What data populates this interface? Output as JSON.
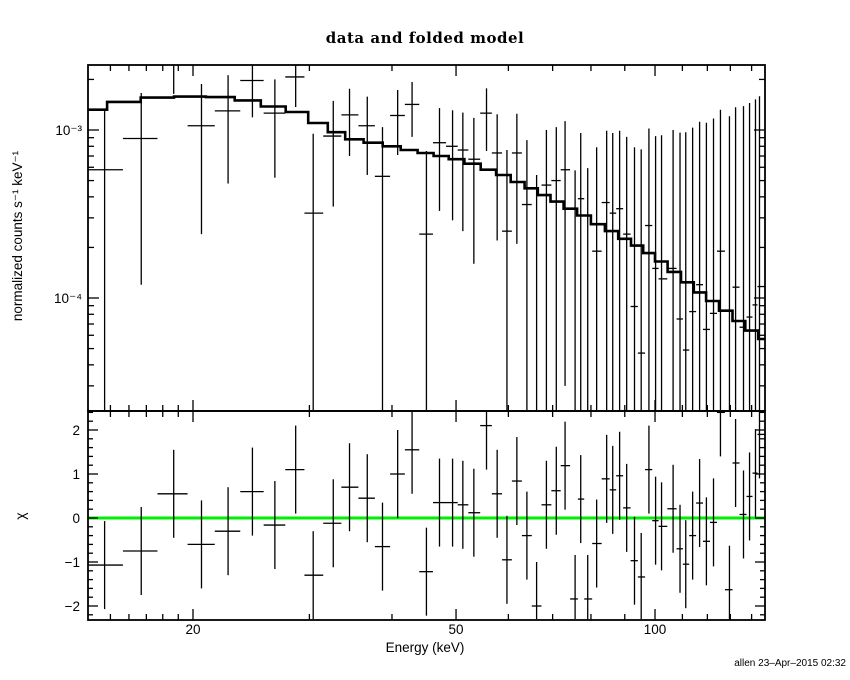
{
  "title": "data and folded model",
  "footer": {
    "credit": "allen 23–Apr–2015 02:32"
  },
  "colors": {
    "foreground": "#000000",
    "background": "#ffffff",
    "model_line": "#000000",
    "zero_line_green": "#00ee00"
  },
  "chart_data": {
    "type": "scatter",
    "title": "data and folded model",
    "xlabel": "Energy (keV)",
    "x_scale": "log",
    "x_range_kev": [
      13.9,
      146.6
    ],
    "x_major_ticks": [
      20,
      50,
      100
    ],
    "x_minor_ticks": [
      15,
      16,
      17,
      18,
      19,
      30,
      40,
      60,
      70,
      80,
      90,
      110,
      120,
      130,
      140
    ],
    "panels": [
      {
        "name": "spectrum",
        "ylabel": "normalized counts s⁻¹ keV⁻¹",
        "y_scale": "log",
        "y_range": [
          2.16e-05,
          0.00244
        ],
        "y_major_ticks": [
          {
            "label": "10⁻³",
            "value": 0.001
          },
          {
            "label": "10⁻⁴",
            "value": 0.0001
          }
        ],
        "model_steps": [
          [
            14.0,
            0.00132
          ],
          [
            15.7,
            0.00147
          ],
          [
            17.7,
            0.00156
          ],
          [
            19.8,
            0.00158
          ],
          [
            22.1,
            0.00157
          ],
          [
            24.2,
            0.0015
          ],
          [
            26.5,
            0.00138
          ],
          [
            28.8,
            0.00128
          ],
          [
            31.0,
            0.0011
          ],
          [
            33.0,
            0.00097
          ],
          [
            35.0,
            0.00088
          ],
          [
            37.5,
            0.00084
          ],
          [
            40.0,
            0.0008
          ],
          [
            42.5,
            0.00076
          ],
          [
            45.0,
            0.00073
          ],
          [
            47.5,
            0.0007
          ],
          [
            50.0,
            0.00067
          ],
          [
            53.0,
            0.00063
          ],
          [
            56.0,
            0.00058
          ],
          [
            59.0,
            0.00054
          ],
          [
            62.0,
            0.00049
          ],
          [
            65.0,
            0.00045
          ],
          [
            68.0,
            0.00041
          ],
          [
            71.0,
            0.000375
          ],
          [
            74.5,
            0.00034
          ],
          [
            78.0,
            0.00031
          ],
          [
            82.0,
            0.000275
          ],
          [
            86.0,
            0.00025
          ],
          [
            90.0,
            0.000225
          ],
          [
            94.0,
            0.000205
          ],
          [
            98.0,
            0.000185
          ],
          [
            102.0,
            0.000165
          ],
          [
            107.0,
            0.000143
          ],
          [
            112.0,
            0.000124
          ],
          [
            117.0,
            0.000108
          ],
          [
            122.0,
            9.6e-05
          ],
          [
            128.0,
            8.4e-05
          ],
          [
            134.0,
            7.3e-05
          ],
          [
            140.0,
            6.4e-05
          ],
          [
            146.6,
            5.7e-05
          ]
        ],
        "points": [
          [
            14.7,
            0.00058,
            0.00072
          ],
          [
            16.7,
            0.00089,
            0.00077
          ],
          [
            18.7,
            0.00245,
            0.00081
          ],
          [
            20.6,
            0.00106,
            0.00082
          ],
          [
            22.6,
            0.0013,
            0.00082
          ],
          [
            24.6,
            0.00197,
            0.00078
          ],
          [
            26.6,
            0.00126,
            0.00074
          ],
          [
            28.6,
            0.00207,
            0.0007
          ],
          [
            30.4,
            0.00032,
            0.00063
          ],
          [
            32.6,
            0.00092,
            0.00057
          ],
          [
            34.5,
            0.00123,
            0.00053
          ],
          [
            36.7,
            0.00106,
            0.00052
          ],
          [
            38.7,
            0.00053,
            0.00051
          ],
          [
            40.8,
            0.00122,
            0.00051
          ],
          [
            42.9,
            0.00142,
            0.00051
          ],
          [
            45.1,
            0.00024,
            0.00051
          ],
          [
            47.2,
            0.00084,
            0.00051
          ],
          [
            49.4,
            0.0008,
            0.00051
          ],
          [
            51.2,
            0.00076,
            0.00051
          ],
          [
            53.2,
            0.00067,
            0.00051
          ],
          [
            55.6,
            0.00126,
            0.00051
          ],
          [
            57.7,
            0.00073,
            0.00051
          ],
          [
            59.7,
            0.00025,
            0.00051
          ],
          [
            61.8,
            0.00073,
            0.00052
          ],
          [
            64.0,
            0.00036,
            0.00051
          ],
          [
            66.2,
            2e-05,
            0.00052
          ],
          [
            68.5,
            0.00047,
            0.00053
          ],
          [
            70.9,
            0.0005,
            0.00054
          ],
          [
            73.1,
            0.00058,
            0.00055
          ],
          [
            75.7,
            1.5e-05,
            0.00056
          ],
          [
            77.2,
            0.00039,
            0.00057
          ],
          [
            79.1,
            1.3e-05,
            0.00058
          ],
          [
            81.6,
            0.00019,
            0.0006
          ],
          [
            84.5,
            0.00037,
            0.00062
          ],
          [
            86.3,
            0.00032,
            0.00064
          ],
          [
            88.4,
            0.00034,
            0.00065
          ],
          [
            90.6,
            0.00024,
            0.00067
          ],
          [
            93.1,
            8.9e-05,
            0.0007
          ],
          [
            95.3,
            4.7e-05,
            0.00072
          ],
          [
            97.9,
            0.00027,
            0.00075
          ],
          [
            100.2,
            0.00015,
            0.00077
          ],
          [
            102.3,
            0.00013,
            0.0008
          ],
          [
            106.5,
            0.00015,
            0.00085
          ],
          [
            109.1,
            7.5e-05,
            0.00089
          ],
          [
            111.3,
            4.9e-05,
            0.00092
          ],
          [
            114.0,
            8.3e-05,
            0.00095
          ],
          [
            116.8,
            0.00012,
            0.001
          ],
          [
            119.6,
            6.5e-05,
            0.00104
          ],
          [
            122.6,
            8.1e-05,
            0.00109
          ],
          [
            125.6,
            0.00019,
            0.00113
          ],
          [
            129.6,
            8e-06,
            0.0012
          ],
          [
            132.4,
            0.000116,
            0.00125
          ],
          [
            136.1,
            6.7e-05,
            0.00132
          ],
          [
            139.0,
            7.7e-05,
            0.00137
          ],
          [
            141.9,
            9.1e-05,
            0.00143
          ],
          [
            143.9,
            0.000117,
            0.00147
          ]
        ]
      },
      {
        "name": "residuals",
        "ylabel": "χ",
        "y_scale": "linear",
        "y_range": [
          -2.32,
          2.43
        ],
        "y_major_ticks": [
          {
            "label": "2",
            "value": 2
          },
          {
            "label": "1",
            "value": 1
          },
          {
            "label": "0",
            "value": 0
          },
          {
            "label": "−1",
            "value": -1
          },
          {
            "label": "−2",
            "value": -2
          }
        ],
        "zero_line": 0,
        "points": [
          [
            14.7,
            -1.07,
            1.0
          ],
          [
            16.7,
            -0.75,
            1.0
          ],
          [
            18.7,
            0.55,
            1.0
          ],
          [
            20.6,
            -0.6,
            1.0
          ],
          [
            22.6,
            -0.3,
            1.0
          ],
          [
            24.6,
            0.6,
            1.0
          ],
          [
            26.6,
            -0.16,
            1.0
          ],
          [
            28.6,
            1.1,
            1.0
          ],
          [
            30.4,
            -1.3,
            1.0
          ],
          [
            32.6,
            -0.12,
            1.0
          ],
          [
            34.5,
            0.7,
            1.0
          ],
          [
            36.7,
            0.45,
            1.0
          ],
          [
            38.7,
            -0.65,
            1.0
          ],
          [
            40.8,
            1.0,
            1.0
          ],
          [
            42.9,
            1.55,
            1.0
          ],
          [
            45.1,
            -1.22,
            1.0
          ],
          [
            47.2,
            0.35,
            1.0
          ],
          [
            49.4,
            0.35,
            1.0
          ],
          [
            51.2,
            0.3,
            1.0
          ],
          [
            53.2,
            0.12,
            1.0
          ],
          [
            55.6,
            2.1,
            1.0
          ],
          [
            57.7,
            0.55,
            1.0
          ],
          [
            59.7,
            -0.95,
            1.0
          ],
          [
            61.8,
            0.84,
            1.0
          ],
          [
            64.0,
            -0.4,
            1.0
          ],
          [
            66.2,
            -2.0,
            1.0
          ],
          [
            68.5,
            0.3,
            1.0
          ],
          [
            70.9,
            0.62,
            1.0
          ],
          [
            73.1,
            1.19,
            1.0
          ],
          [
            75.7,
            -1.84,
            1.0
          ],
          [
            77.2,
            0.43,
            1.0
          ],
          [
            79.1,
            -1.84,
            1.0
          ],
          [
            81.6,
            -0.58,
            1.0
          ],
          [
            84.5,
            0.89,
            1.0
          ],
          [
            86.3,
            0.64,
            1.0
          ],
          [
            88.4,
            0.96,
            1.0
          ],
          [
            90.6,
            0.23,
            1.0
          ],
          [
            93.1,
            -0.97,
            1.0
          ],
          [
            95.3,
            -1.34,
            1.0
          ],
          [
            97.9,
            1.1,
            1.0
          ],
          [
            100.2,
            -0.06,
            1.0
          ],
          [
            102.3,
            -0.19,
            1.0
          ],
          [
            106.5,
            0.21,
            1.0
          ],
          [
            109.1,
            -0.7,
            1.0
          ],
          [
            111.3,
            -1.05,
            1.0
          ],
          [
            114.0,
            -0.4,
            1.0
          ],
          [
            116.8,
            0.34,
            1.0
          ],
          [
            119.6,
            -0.53,
            1.0
          ],
          [
            122.6,
            -0.1,
            1.0
          ],
          [
            125.6,
            2.4,
            1.0
          ],
          [
            129.6,
            -1.63,
            1.0
          ],
          [
            132.4,
            1.25,
            1.0
          ],
          [
            136.1,
            0.08,
            1.0
          ],
          [
            139.0,
            0.49,
            1.0
          ],
          [
            141.9,
            1.02,
            1.0
          ],
          [
            143.9,
            1.9,
            1.0
          ]
        ]
      }
    ],
    "legend": null,
    "grid": false
  }
}
